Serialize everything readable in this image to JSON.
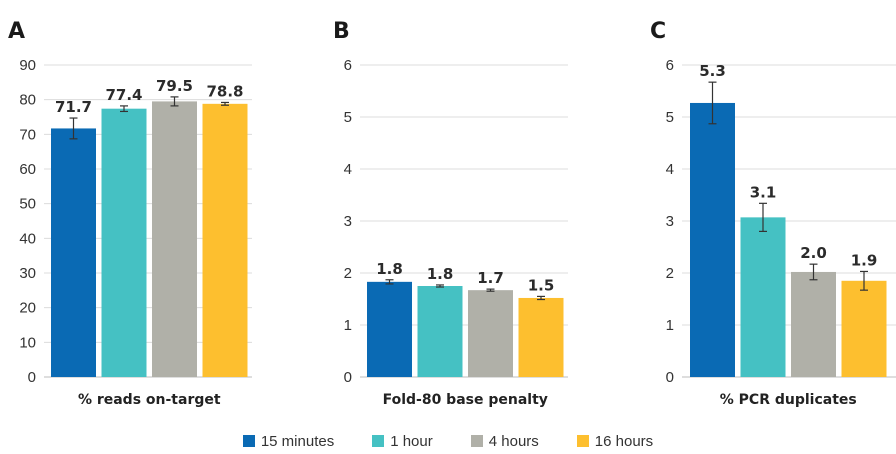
{
  "legend": [
    {
      "label": "15 minutes",
      "color": "#0a6ab4"
    },
    {
      "label": "1 hour",
      "color": "#45c1c3"
    },
    {
      "label": "4 hours",
      "color": "#b0b0a8"
    },
    {
      "label": "16 hours",
      "color": "#fdbf2f"
    }
  ],
  "chart_data": [
    {
      "type": "bar",
      "panel": "A",
      "xlabel": "% reads on-target",
      "ylim": [
        0,
        90
      ],
      "yticks": [
        0,
        10,
        20,
        30,
        40,
        50,
        60,
        70,
        80,
        90
      ],
      "categories": [
        "15 minutes",
        "1 hour",
        "4 hours",
        "16 hours"
      ],
      "values": [
        71.7,
        77.4,
        79.5,
        78.8
      ],
      "labels": [
        "71.7",
        "77.4",
        "79.5",
        "78.8"
      ],
      "errors": [
        3.0,
        0.8,
        1.3,
        0.4
      ],
      "grid": true
    },
    {
      "type": "bar",
      "panel": "B",
      "xlabel": "Fold-80 base penalty",
      "ylim": [
        0,
        6
      ],
      "yticks": [
        0,
        1,
        2,
        3,
        4,
        5,
        6
      ],
      "categories": [
        "15 minutes",
        "1 hour",
        "4 hours",
        "16 hours"
      ],
      "values": [
        1.83,
        1.75,
        1.67,
        1.52
      ],
      "labels": [
        "1.8",
        "1.8",
        "1.7",
        "1.5"
      ],
      "errors": [
        0.04,
        0.02,
        0.02,
        0.03
      ],
      "grid": true
    },
    {
      "type": "bar",
      "panel": "C",
      "xlabel": "% PCR duplicates",
      "ylim": [
        0,
        6
      ],
      "yticks": [
        0,
        1,
        2,
        3,
        4,
        5,
        6
      ],
      "categories": [
        "15 minutes",
        "1 hour",
        "4 hours",
        "16 hours"
      ],
      "values": [
        5.27,
        3.07,
        2.02,
        1.85
      ],
      "labels": [
        "5.3",
        "3.1",
        "2.0",
        "1.9"
      ],
      "errors": [
        0.4,
        0.27,
        0.15,
        0.18
      ],
      "grid": true
    }
  ]
}
